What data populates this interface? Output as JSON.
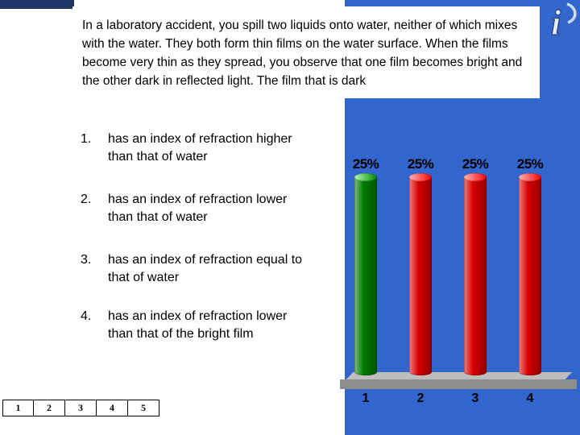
{
  "colors": {
    "background_blue": "#3366CC",
    "corner_navy": "#1F3566",
    "correct_green": "#007C00",
    "answer_red": "#D80000",
    "platform_gray": "#8E8E8E"
  },
  "icon": {
    "name": "interactive-i-logo",
    "glyph": "i"
  },
  "question": {
    "text": "In a laboratory accident, you spill two liquids onto water, neither of which mixes with the water. They both form thin films on the water surface. When the films become very thin as they spread, you observe that one film becomes bright and the other dark in reflected light. The film that is dark"
  },
  "answers": [
    {
      "number": "1.",
      "text": "has an index of refraction higher than that of water"
    },
    {
      "number": "2.",
      "text": "has an index of refraction lower than that of water"
    },
    {
      "number": "3.",
      "text": "has an index of refraction equal to that of water"
    },
    {
      "number": "4.",
      "text": "has an index of refraction lower than that of the bright film"
    }
  ],
  "chart_data": {
    "type": "bar",
    "title": "",
    "categories": [
      "1",
      "2",
      "3",
      "4"
    ],
    "values": [
      25,
      25,
      25,
      25
    ],
    "value_labels": [
      "25%",
      "25%",
      "25%",
      "25%"
    ],
    "bar_colors": [
      "#007C00",
      "#D80000",
      "#D80000",
      "#D80000"
    ],
    "xlabel": "",
    "ylabel": "",
    "ylim": [
      0,
      25
    ],
    "legend": "none",
    "grid": false
  },
  "countdown": {
    "items": [
      "1",
      "2",
      "3",
      "4",
      "5"
    ]
  }
}
